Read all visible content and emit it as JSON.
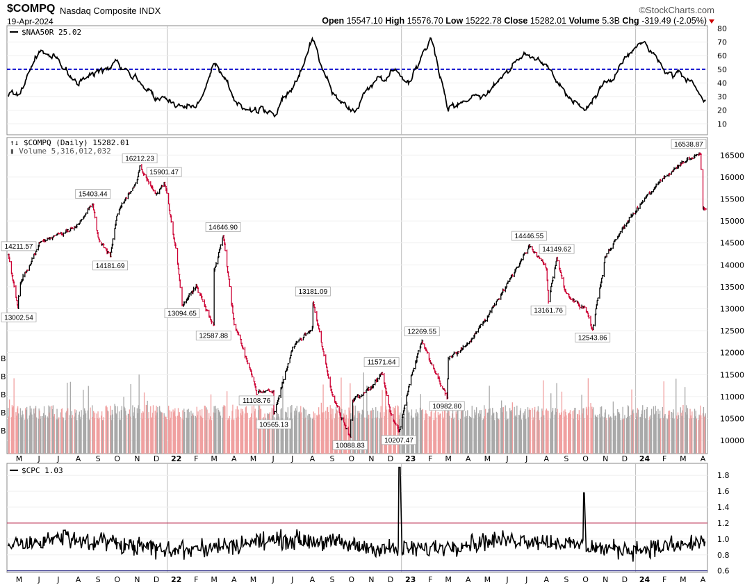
{
  "header": {
    "symbol": "$COMPQ",
    "name": "Nasdaq Composite",
    "exchange": "INDX",
    "date": "19-Apr-2024",
    "brand": "©StockCharts.com",
    "quote": {
      "open_label": "Open",
      "open": "15547.10",
      "high_label": "High",
      "high": "15576.70",
      "low_label": "Low",
      "low": "15222.78",
      "close_label": "Close",
      "close": "15282.01",
      "volume_label": "Volume",
      "volume": "5.3B",
      "chg_label": "Chg",
      "chg": "-319.49 (-2.05%)"
    }
  },
  "chart_data": [
    {
      "type": "line",
      "panel": "top",
      "legend": "$NAA50R 25.02",
      "ylim": [
        2,
        82
      ],
      "yticks": [
        10,
        20,
        30,
        40,
        50,
        60,
        70,
        80
      ],
      "reference_line": {
        "value": 50,
        "color": "#0000cc",
        "style": "dashed"
      },
      "x": [
        "2021-05",
        "2021-06",
        "2021-07",
        "2021-08",
        "2021-09",
        "2021-10",
        "2021-11",
        "2021-12",
        "2022-01",
        "2022-02",
        "2022-03",
        "2022-04",
        "2022-05",
        "2022-06",
        "2022-07",
        "2022-08",
        "2022-09",
        "2022-10",
        "2022-11",
        "2022-12",
        "2023-01",
        "2023-02",
        "2023-03",
        "2023-04",
        "2023-05",
        "2023-06",
        "2023-07",
        "2023-08",
        "2023-09",
        "2023-10",
        "2023-11",
        "2023-12",
        "2024-01",
        "2024-02",
        "2024-03",
        "2024-04"
      ],
      "values": [
        32,
        64,
        55,
        40,
        48,
        58,
        43,
        30,
        26,
        22,
        53,
        28,
        20,
        18,
        34,
        73,
        33,
        18,
        39,
        50,
        42,
        76,
        20,
        30,
        33,
        50,
        60,
        55,
        32,
        20,
        40,
        58,
        70,
        48,
        45,
        25
      ],
      "color": "#000000"
    },
    {
      "type": "ohlc_volume",
      "panel": "main",
      "legend": "$COMPQ (Daily) 15282.01",
      "volume_legend": "Volume 5,316,012,032",
      "ylim": [
        9700,
        16900
      ],
      "yticks": [
        10000,
        10500,
        11000,
        11500,
        12000,
        12500,
        13000,
        13500,
        14000,
        14500,
        15000,
        15500,
        16000,
        16500
      ],
      "volume_axis_labels": [
        "B",
        "B",
        "B",
        "B",
        "B"
      ],
      "x": [
        "2021-05",
        "2021-06",
        "2021-07",
        "2021-08",
        "2021-09",
        "2021-10",
        "2021-11",
        "2021-12",
        "2022-01",
        "2022-02",
        "2022-03",
        "2022-04",
        "2022-05",
        "2022-06",
        "2022-07",
        "2022-08",
        "2022-09",
        "2022-10",
        "2022-11",
        "2022-12",
        "2023-01",
        "2023-02",
        "2023-03",
        "2023-04",
        "2023-05",
        "2023-06",
        "2023-07",
        "2023-08",
        "2023-09",
        "2023-10",
        "2023-11",
        "2023-12",
        "2024-01",
        "2024-02",
        "2024-03",
        "2024-04"
      ],
      "close": [
        13500,
        14500,
        14700,
        14900,
        14600,
        15200,
        15900,
        15600,
        14300,
        13500,
        13900,
        12700,
        11400,
        11100,
        12100,
        12600,
        11000,
        10900,
        11200,
        10600,
        11400,
        11800,
        11900,
        12200,
        12800,
        13600,
        14300,
        13900,
        13300,
        13000,
        14200,
        14900,
        15500,
        16000,
        16350,
        15282
      ],
      "annotations": [
        {
          "x": "2021-04-28",
          "value": 14211.57,
          "label": "14211.57"
        },
        {
          "x": "2021-05-13",
          "value": 13002.54,
          "label": "13002.54"
        },
        {
          "x": "2021-09-07",
          "value": 15403.44,
          "label": "15403.44"
        },
        {
          "x": "2021-10-04",
          "value": 14181.69,
          "label": "14181.69"
        },
        {
          "x": "2021-11-19",
          "value": 16212.23,
          "label": "16212.23"
        },
        {
          "x": "2021-12-27",
          "value": 15901.47,
          "label": "15901.47"
        },
        {
          "x": "2022-01-24",
          "value": 13094.65,
          "label": "13094.65"
        },
        {
          "x": "2022-03-14",
          "value": 12587.88,
          "label": "12587.88"
        },
        {
          "x": "2022-03-29",
          "value": 14646.9,
          "label": "14646.90"
        },
        {
          "x": "2022-05-20",
          "value": 11108.76,
          "label": "11108.76"
        },
        {
          "x": "2022-06-16",
          "value": 10565.13,
          "label": "10565.13"
        },
        {
          "x": "2022-08-16",
          "value": 13181.09,
          "label": "13181.09"
        },
        {
          "x": "2022-10-13",
          "value": 10088.83,
          "label": "10088.83"
        },
        {
          "x": "2022-12-01",
          "value": 11571.64,
          "label": "11571.64"
        },
        {
          "x": "2022-12-28",
          "value": 10207.47,
          "label": "10207.47"
        },
        {
          "x": "2023-02-02",
          "value": 12269.55,
          "label": "12269.55"
        },
        {
          "x": "2023-03-13",
          "value": 10982.8,
          "label": "10982.80"
        },
        {
          "x": "2023-07-19",
          "value": 14446.55,
          "label": "14446.55"
        },
        {
          "x": "2023-08-31",
          "value": 14149.62,
          "label": "14149.62"
        },
        {
          "x": "2023-08-18",
          "value": 13161.76,
          "label": "13161.76"
        },
        {
          "x": "2023-10-26",
          "value": 12543.86,
          "label": "12543.86"
        },
        {
          "x": "2024-04-11",
          "value": 16538.87,
          "label": "16538.87"
        }
      ],
      "colors": {
        "up": "#000000",
        "down": "#cc0033",
        "volume_up": "#a9a9a9",
        "volume_down": "#f0a0a0"
      }
    },
    {
      "type": "line",
      "panel": "bottom",
      "legend": "$CPC 1.03",
      "ylim": [
        0.58,
        1.95
      ],
      "yticks": [
        0.6,
        0.8,
        1.0,
        1.2,
        1.4,
        1.6,
        1.8
      ],
      "reference_lines": [
        {
          "value": 1.2,
          "color": "#c04060"
        },
        {
          "value": 0.6,
          "color": "#202080"
        }
      ],
      "values_summary": {
        "typical_low": 0.75,
        "typical_high": 1.15,
        "peak_2022_12": 1.9,
        "peak_2023_10": 1.58
      },
      "color": "#000000"
    }
  ],
  "x_axis": {
    "labels": [
      "M",
      "J",
      "J",
      "A",
      "S",
      "O",
      "N",
      "D",
      "22",
      "F",
      "M",
      "A",
      "M",
      "J",
      "J",
      "A",
      "S",
      "O",
      "N",
      "D",
      "23",
      "F",
      "M",
      "A",
      "M",
      "J",
      "J",
      "A",
      "S",
      "O",
      "N",
      "D",
      "24",
      "F",
      "M",
      "A"
    ],
    "bold": [
      "22",
      "23",
      "24"
    ]
  }
}
